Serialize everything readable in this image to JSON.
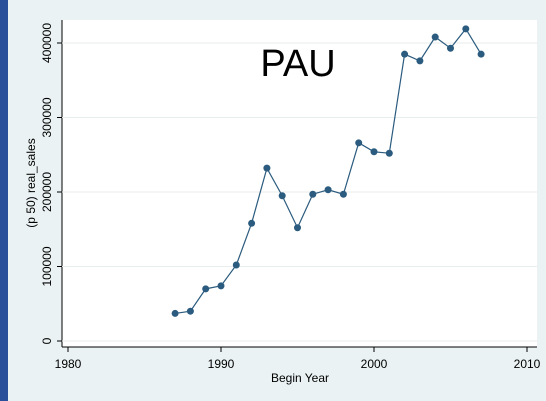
{
  "chart_data": {
    "type": "line",
    "title": "PAU",
    "xlabel": "Begin Year",
    "ylabel": "(p 50) real_sales",
    "x": [
      1987,
      1988,
      1989,
      1990,
      1991,
      1992,
      1993,
      1994,
      1995,
      1996,
      1997,
      1998,
      1999,
      2000,
      2001,
      2002,
      2003,
      2004,
      2005,
      2006,
      2007
    ],
    "series": [
      {
        "name": "real_sales",
        "color": "#2b5b7e",
        "values": [
          37000,
          40000,
          70000,
          74000,
          102000,
          158000,
          232000,
          195000,
          152000,
          197000,
          203000,
          197000,
          266000,
          254000,
          252000,
          385000,
          376000,
          408000,
          393000,
          419000,
          385000
        ]
      }
    ],
    "xlim": [
      1980,
      2010
    ],
    "xticks": [
      1980,
      1990,
      2000,
      2010
    ],
    "ylim": [
      0,
      400000
    ],
    "yticks": [
      0,
      100000,
      200000,
      300000,
      400000
    ],
    "grid": true
  }
}
